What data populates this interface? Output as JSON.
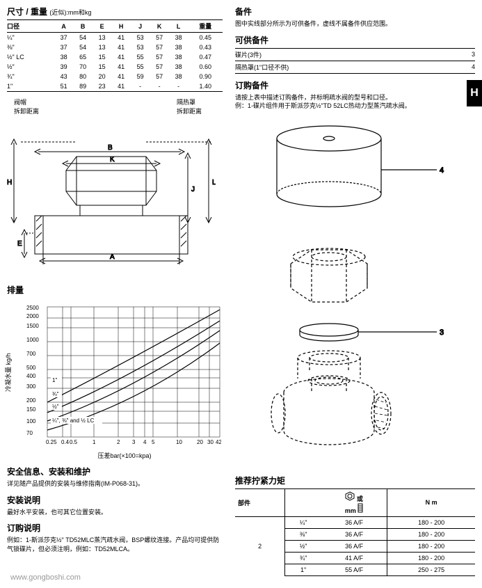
{
  "left": {
    "sizeWeightHeading": "尺寸 / 重量",
    "sizeWeightSub": "(近似):mm和kg",
    "table": {
      "headers": [
        "口径",
        "A",
        "B",
        "E",
        "H",
        "J",
        "K",
        "L",
        "重量"
      ],
      "rows": [
        [
          "¼\"",
          "37",
          "54",
          "13",
          "41",
          "53",
          "57",
          "38",
          "0.45"
        ],
        [
          "⅜\"",
          "37",
          "54",
          "13",
          "41",
          "53",
          "57",
          "38",
          "0.43"
        ],
        [
          "½\" LC",
          "38",
          "65",
          "15",
          "41",
          "55",
          "57",
          "38",
          "0.47"
        ],
        [
          "½\"",
          "39",
          "70",
          "15",
          "41",
          "55",
          "57",
          "38",
          "0.60"
        ],
        [
          "¾\"",
          "43",
          "80",
          "20",
          "41",
          "59",
          "57",
          "38",
          "0.90"
        ],
        [
          "1\"",
          "51",
          "89",
          "23",
          "41",
          "-",
          "-",
          "-",
          "1.40"
        ]
      ]
    },
    "capLabel": "阀帽\n拆卸距离",
    "coverLabel": "隔热罩\n拆卸距离",
    "dischargeHeading": "排量",
    "chart": {
      "yTicks": [
        "2500",
        "2000",
        "1500",
        "1000",
        "700",
        "500",
        "400",
        "300",
        "200",
        "150",
        "100",
        "70"
      ],
      "yAxisLabel": "冷凝水量 kg/h",
      "xTicks": [
        "0.25",
        "0.4",
        "0.5",
        "1",
        "2",
        "3",
        "4",
        "5",
        "10",
        "20",
        "30",
        "42"
      ],
      "xAxisLabel": "压差bar(×100=kpa)",
      "lineLabels": [
        "1\"",
        "¾\"",
        "½\"",
        "¼\", ⅜\" and ½ LC"
      ]
    },
    "safetyHeading": "安全信息、安装和维护",
    "safetyText": "详见随产品提供的安装与维修指南(IM-P068-31)。",
    "installHeading": "安装说明",
    "installText": "最好水平安装，也可其它位置安装。",
    "orderHeading": "订购说明",
    "orderText": "例如：1-斯派莎克½\" TD52MLC蒸汽疏水阀，BSP螺纹连接。产品均可提供防气锁碟片，但必须注明，例如：TD52MLCA。"
  },
  "right": {
    "spareHeading": "备件",
    "spareText": "图中实线部分所示为可供备件，虚线不属备件供应范围。",
    "spareAvailHeading": "可供备件",
    "spareTable": [
      [
        "碟片(3件)",
        "3"
      ],
      [
        "隔热罩(1\"口径不供)",
        "4"
      ]
    ],
    "orderSpareHeading": "订购备件",
    "orderSpareText": "请按上表中描述订购备件，并标明疏水阀的型号和口径。\n例：1-碟片组件用于斯派莎克½\"TD 52LC热动力型蒸汽疏水阀。",
    "torqueHeading": "推荐拧紧力矩",
    "torque": {
      "headers": [
        "部件",
        "",
        "或\nmm",
        "N m"
      ],
      "partCol": "2",
      "rows": [
        [
          "¼\"",
          "36 A/F",
          "180 - 200"
        ],
        [
          "⅜\"",
          "36 A/F",
          "180 - 200"
        ],
        [
          "½\"",
          "36 A/F",
          "180 - 200"
        ],
        [
          "¾\"",
          "41 A/F",
          "180 - 200"
        ],
        [
          "1\"",
          "55 A/F",
          "250 - 275"
        ]
      ]
    }
  },
  "hTab": "H",
  "watermark": "www.gongboshi.com"
}
